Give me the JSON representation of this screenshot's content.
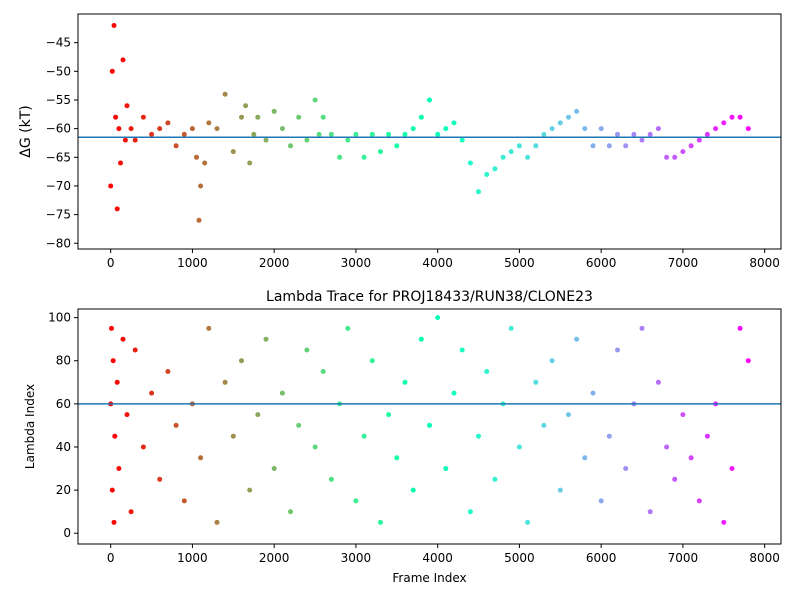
{
  "chart_data": [
    {
      "type": "scatter",
      "title": "",
      "xlabel": "",
      "ylabel": "ΔG (kT)",
      "xlim": [
        -400,
        8200
      ],
      "ylim": [
        -81,
        -40
      ],
      "xticks": [
        0,
        1000,
        2000,
        3000,
        4000,
        5000,
        6000,
        7000,
        8000
      ],
      "xtick_labels": [
        "0",
        "1000",
        "2000",
        "3000",
        "4000",
        "5000",
        "6000",
        "7000",
        "8000"
      ],
      "yticks": [
        -80,
        -75,
        -70,
        -65,
        -60,
        -55,
        -50,
        -45
      ],
      "ytick_labels": [
        "−80",
        "−75",
        "−70",
        "−65",
        "−60",
        "−55",
        "−50",
        "−45"
      ],
      "hline": -61.5,
      "color_by": "frame index (rainbow colormap, red at start to violet at end)",
      "grid": false,
      "series": [
        {
          "x": [
            0,
            20,
            40,
            60,
            80,
            100,
            120,
            150,
            180,
            200,
            250,
            300,
            400,
            500,
            600,
            700,
            800,
            900,
            1000,
            1050,
            1080,
            1100,
            1150,
            1200,
            1300,
            1400,
            1500,
            1600,
            1650,
            1700,
            1750,
            1800,
            1900,
            2000,
            2100,
            2200,
            2300,
            2400,
            2500,
            2550,
            2600,
            2700,
            2800,
            2900,
            3000,
            3100,
            3200,
            3300,
            3400,
            3500,
            3600,
            3700,
            3800,
            3900,
            4000,
            4100,
            4200,
            4300,
            4400,
            4500,
            4600,
            4700,
            4800,
            4900,
            5000,
            5100,
            5200,
            5300,
            5400,
            5500,
            5600,
            5700,
            5800,
            5900,
            6000,
            6100,
            6200,
            6300,
            6400,
            6500,
            6600,
            6700,
            6800,
            6900,
            7000,
            7100,
            7200,
            7300,
            7400,
            7500,
            7600,
            7700,
            7800
          ],
          "y": [
            -70,
            -50,
            -42,
            -58,
            -74,
            -60,
            -66,
            -48,
            -62,
            -56,
            -60,
            -62,
            -58,
            -61,
            -60,
            -59,
            -63,
            -61,
            -60,
            -65,
            -76,
            -70,
            -66,
            -59,
            -60,
            -54,
            -64,
            -58,
            -56,
            -66,
            -61,
            -58,
            -62,
            -57,
            -60,
            -63,
            -58,
            -62,
            -55,
            -61,
            -58,
            -61,
            -65,
            -62,
            -61,
            -65,
            -61,
            -64,
            -61,
            -63,
            -61,
            -60,
            -58,
            -55,
            -61,
            -60,
            -59,
            -62,
            -66,
            -71,
            -68,
            -67,
            -65,
            -64,
            -63,
            -65,
            -63,
            -61,
            -60,
            -59,
            -58,
            -57,
            -60,
            -63,
            -60,
            -63,
            -61,
            -63,
            -61,
            -62,
            -61,
            -60,
            -65,
            -65,
            -64,
            -63,
            -62,
            -61,
            -60,
            -59,
            -58,
            -58,
            -60
          ]
        }
      ]
    },
    {
      "type": "scatter",
      "title": "Lambda Trace for PROJ18433/RUN38/CLONE23",
      "xlabel": "Frame Index",
      "ylabel": "Lambda Index",
      "xlim": [
        -400,
        8200
      ],
      "ylim": [
        -5,
        104
      ],
      "xticks": [
        0,
        1000,
        2000,
        3000,
        4000,
        5000,
        6000,
        7000,
        8000
      ],
      "xtick_labels": [
        "0",
        "1000",
        "2000",
        "3000",
        "4000",
        "5000",
        "6000",
        "7000",
        "8000"
      ],
      "yticks": [
        0,
        20,
        40,
        60,
        80,
        100
      ],
      "ytick_labels": [
        "0",
        "20",
        "40",
        "60",
        "80",
        "100"
      ],
      "hline": 60,
      "color_by": "frame index (rainbow colormap, red at start to violet at end)",
      "grid": false,
      "series": [
        {
          "x": [
            0,
            10,
            20,
            30,
            40,
            50,
            80,
            100,
            150,
            200,
            250,
            300,
            400,
            500,
            600,
            700,
            800,
            900,
            1000,
            1100,
            1200,
            1300,
            1400,
            1500,
            1600,
            1700,
            1800,
            1900,
            2000,
            2100,
            2200,
            2300,
            2400,
            2500,
            2600,
            2700,
            2800,
            2900,
            3000,
            3100,
            3200,
            3300,
            3400,
            3500,
            3600,
            3700,
            3800,
            3900,
            4000,
            4100,
            4200,
            4300,
            4400,
            4500,
            4600,
            4700,
            4800,
            4900,
            5000,
            5100,
            5200,
            5300,
            5400,
            5500,
            5600,
            5700,
            5800,
            5900,
            6000,
            6100,
            6200,
            6300,
            6400,
            6500,
            6600,
            6700,
            6800,
            6900,
            7000,
            7100,
            7200,
            7300,
            7400,
            7500,
            7600,
            7700,
            7800
          ],
          "y": [
            60,
            95,
            20,
            80,
            5,
            45,
            70,
            30,
            90,
            55,
            10,
            85,
            40,
            65,
            25,
            75,
            50,
            15,
            60,
            35,
            95,
            5,
            70,
            45,
            80,
            20,
            55,
            90,
            30,
            65,
            10,
            50,
            85,
            40,
            75,
            25,
            60,
            95,
            15,
            45,
            80,
            5,
            55,
            35,
            70,
            20,
            90,
            50,
            100,
            30,
            65,
            85,
            10,
            45,
            75,
            25,
            60,
            95,
            40,
            5,
            70,
            50,
            80,
            20,
            55,
            90,
            35,
            65,
            15,
            45,
            85,
            30,
            60,
            95,
            10,
            70,
            40,
            25,
            55,
            35,
            15,
            45,
            60,
            5,
            30,
            95,
            80
          ]
        }
      ]
    }
  ]
}
